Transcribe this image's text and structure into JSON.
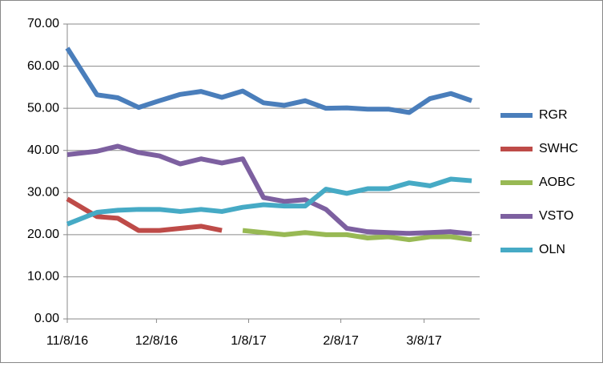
{
  "chart_data": {
    "type": "line",
    "x": [
      "11/8/16",
      "11/18/16",
      "11/25/16",
      "12/2/16",
      "12/9/16",
      "12/16/16",
      "12/23/16",
      "12/30/16",
      "1/6/17",
      "1/13/17",
      "1/20/17",
      "1/27/17",
      "2/3/17",
      "2/10/17",
      "2/17/17",
      "2/24/17",
      "3/3/17",
      "3/10/17",
      "3/17/17",
      "3/24/17"
    ],
    "xlim": [
      "11/8/16",
      "3/24/17"
    ],
    "xticks": [
      "11/8/16",
      "12/8/16",
      "1/8/17",
      "2/8/17",
      "3/8/17"
    ],
    "ylim": [
      0,
      70
    ],
    "yticks": [
      {
        "value": 0,
        "label": "0.00"
      },
      {
        "value": 10,
        "label": "10.00"
      },
      {
        "value": 20,
        "label": "20.00"
      },
      {
        "value": 30,
        "label": "30.00"
      },
      {
        "value": 40,
        "label": "40.00"
      },
      {
        "value": 50,
        "label": "50.00"
      },
      {
        "value": 60,
        "label": "60.00"
      },
      {
        "value": 70,
        "label": "70.00"
      }
    ],
    "grid": true,
    "legend": "right",
    "series": [
      {
        "name": "RGR",
        "color": "#4a7ebb",
        "values": [
          64.3,
          53.2,
          52.5,
          50.2,
          51.8,
          53.3,
          54.0,
          52.6,
          54.1,
          51.3,
          50.7,
          51.8,
          50.0,
          50.1,
          49.8,
          49.8,
          49.0,
          52.3,
          53.5,
          51.8
        ]
      },
      {
        "name": "SWHC",
        "color": "#be4b48",
        "values": [
          28.5,
          24.3,
          23.9,
          21.0,
          21.0,
          21.5,
          22.0,
          21.0,
          null,
          null,
          null,
          null,
          null,
          null,
          null,
          null,
          null,
          null,
          null,
          null
        ]
      },
      {
        "name": "AOBC",
        "color": "#98b954",
        "values": [
          null,
          null,
          null,
          null,
          null,
          null,
          null,
          null,
          21.0,
          20.5,
          20.0,
          20.5,
          20.0,
          20.0,
          19.2,
          19.5,
          18.8,
          19.5,
          19.5,
          18.8
        ]
      },
      {
        "name": "VSTO",
        "color": "#7d60a0",
        "values": [
          39.0,
          39.8,
          41.0,
          39.5,
          38.7,
          36.8,
          38.0,
          37.0,
          38.0,
          28.8,
          27.9,
          28.3,
          26.0,
          21.5,
          20.7,
          20.5,
          20.3,
          20.5,
          20.7,
          20.2
        ]
      },
      {
        "name": "OLN",
        "color": "#46aac5",
        "values": [
          22.5,
          25.3,
          25.8,
          26.0,
          26.0,
          25.5,
          26.0,
          25.5,
          26.5,
          27.1,
          26.8,
          26.8,
          30.8,
          29.8,
          30.9,
          30.9,
          32.3,
          31.6,
          33.2,
          32.8
        ]
      }
    ]
  }
}
